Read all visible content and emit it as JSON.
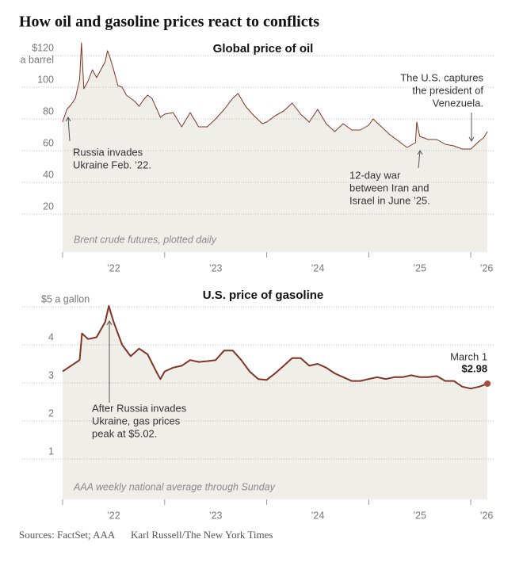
{
  "title": "How oil and gasoline prices react to conflicts",
  "source": "Sources: FactSet; AAA",
  "credit": "Karl Russell/The New York Times",
  "chart_data": [
    {
      "type": "area",
      "title": "Global price of oil",
      "note": "Brent crude futures, plotted daily",
      "ylabel": "a barrel",
      "x": [
        2022,
        2022.042,
        2022.083,
        2022.125,
        2022.167,
        2022.185,
        2022.208,
        2022.25,
        2022.292,
        2022.333,
        2022.375,
        2022.417,
        2022.44,
        2022.458,
        2022.5,
        2022.542,
        2022.583,
        2022.625,
        2022.667,
        2022.708,
        2022.75,
        2022.792,
        2022.833,
        2022.875,
        2022.917,
        2022.958,
        2023,
        2023.083,
        2023.167,
        2023.25,
        2023.333,
        2023.417,
        2023.5,
        2023.583,
        2023.667,
        2023.72,
        2023.792,
        2023.875,
        2023.958,
        2024,
        2024.083,
        2024.167,
        2024.25,
        2024.333,
        2024.417,
        2024.5,
        2024.583,
        2024.667,
        2024.75,
        2024.833,
        2024.917,
        2025,
        2025.042,
        2025.125,
        2025.208,
        2025.292,
        2025.375,
        2025.458,
        2025.47,
        2025.5,
        2025.583,
        2025.667,
        2025.75,
        2025.833,
        2025.917,
        2026,
        2026.083,
        2026.125,
        2026.163
      ],
      "series": [
        {
          "name": "Brent crude",
          "color": "#7f3526",
          "fill": "#f0eee9",
          "values": [
            78,
            86,
            89,
            93,
            105,
            128,
            99,
            104,
            111,
            106,
            111,
            116,
            123,
            120,
            111,
            101,
            100,
            95,
            93,
            91,
            88,
            92,
            95,
            93,
            87,
            81,
            83,
            84,
            75,
            84,
            75,
            75,
            80,
            86,
            93,
            96,
            88,
            82,
            77,
            78,
            82,
            85,
            90,
            83,
            78,
            86,
            77,
            72,
            77,
            73,
            73,
            76,
            80,
            75,
            70,
            66,
            62,
            65,
            78,
            69,
            67,
            67,
            64,
            63,
            61,
            61,
            66,
            68,
            72
          ]
        }
      ],
      "xlim": [
        2022,
        2026.17
      ],
      "xticks": [
        {
          "value": 2022,
          "label": "’22"
        },
        {
          "value": 2023,
          "label": "’23"
        },
        {
          "value": 2024,
          "label": "’24"
        },
        {
          "value": 2025,
          "label": "’25"
        },
        {
          "value": 2026,
          "label": "’26"
        }
      ],
      "ylim": [
        0,
        130
      ],
      "yticks": [
        20,
        40,
        60,
        80,
        100,
        {
          "value": 120,
          "label": "$120"
        }
      ],
      "grid": true,
      "annotations": [
        {
          "lines": [
            "Russia invades",
            "Ukraine Feb. ’22."
          ]
        },
        {
          "lines": [
            "12-day war",
            "between Iran and",
            "Israel in June ’25."
          ]
        },
        {
          "lines": [
            "The U.S. captures",
            "the president of",
            "Venezuela."
          ]
        }
      ]
    },
    {
      "type": "area",
      "title": "U.S. price of gasoline",
      "note": "AAA weekly national average through Sunday",
      "x": [
        2022,
        2022.083,
        2022.167,
        2022.19,
        2022.25,
        2022.333,
        2022.417,
        2022.453,
        2022.5,
        2022.583,
        2022.667,
        2022.75,
        2022.833,
        2022.917,
        2022.958,
        2023,
        2023.083,
        2023.167,
        2023.25,
        2023.333,
        2023.417,
        2023.5,
        2023.583,
        2023.667,
        2023.75,
        2023.833,
        2023.917,
        2024,
        2024.083,
        2024.167,
        2024.25,
        2024.333,
        2024.417,
        2024.5,
        2024.583,
        2024.667,
        2024.75,
        2024.833,
        2024.917,
        2025,
        2025.083,
        2025.167,
        2025.25,
        2025.333,
        2025.417,
        2025.5,
        2025.583,
        2025.667,
        2025.75,
        2025.833,
        2025.917,
        2026,
        2026.083,
        2026.163
      ],
      "series": [
        {
          "name": "Gasoline",
          "color": "#7f3526",
          "fill": "#f0eee9",
          "values": [
            3.3,
            3.45,
            3.6,
            4.3,
            4.15,
            4.2,
            4.6,
            5.02,
            4.6,
            4.0,
            3.7,
            3.9,
            3.75,
            3.3,
            3.1,
            3.3,
            3.4,
            3.45,
            3.6,
            3.55,
            3.57,
            3.6,
            3.85,
            3.85,
            3.6,
            3.3,
            3.1,
            3.08,
            3.25,
            3.45,
            3.65,
            3.65,
            3.45,
            3.5,
            3.4,
            3.25,
            3.15,
            3.05,
            3.05,
            3.1,
            3.15,
            3.1,
            3.15,
            3.15,
            3.2,
            3.15,
            3.15,
            3.18,
            3.05,
            3.05,
            2.9,
            2.85,
            2.9,
            2.98
          ],
          "value_labels": [
            null,
            null,
            null,
            null,
            null,
            null,
            null,
            null,
            null,
            null,
            null,
            null,
            null,
            null,
            null,
            null,
            null,
            null,
            null,
            null,
            null,
            null,
            null,
            null,
            null,
            null,
            null,
            null,
            null,
            null,
            null,
            null,
            null,
            null,
            null,
            null,
            null,
            null,
            null,
            null,
            null,
            null,
            null,
            null,
            null,
            null,
            null,
            null,
            null,
            null,
            null,
            null,
            null,
            "$2.98"
          ]
        }
      ],
      "end_date": "March 1",
      "xlim": [
        2022,
        2026.17
      ],
      "xticks": [
        {
          "value": 2022,
          "label": "’22"
        },
        {
          "value": 2023,
          "label": "’23"
        },
        {
          "value": 2024,
          "label": "’24"
        },
        {
          "value": 2025,
          "label": "’25"
        },
        {
          "value": 2026,
          "label": "’26"
        }
      ],
      "ylim": [
        0,
        5.2
      ],
      "yticks": [
        1,
        2,
        3,
        4,
        {
          "value": 5,
          "label": "$5 a gallon"
        }
      ],
      "grid": true,
      "annotations": [
        {
          "lines": [
            "After Russia invades",
            "Ukraine, gas prices",
            "peak at $5.02."
          ]
        }
      ]
    }
  ]
}
